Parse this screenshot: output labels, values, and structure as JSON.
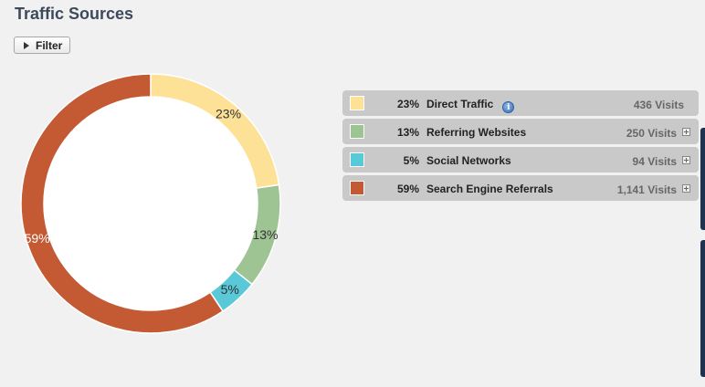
{
  "header": {
    "title": "Traffic Sources"
  },
  "toolbar": {
    "filter_label": "Filter"
  },
  "chart_data": {
    "type": "pie",
    "style": "donut",
    "categories": [
      "Direct Traffic",
      "Referring Websites",
      "Social Networks",
      "Search Engine Referrals"
    ],
    "values": [
      436,
      250,
      94,
      1141
    ],
    "percent_labels": [
      "23%",
      "13%",
      "5%",
      "59%"
    ],
    "colors": [
      "#fde197",
      "#9dc492",
      "#59c9d7",
      "#c35a33"
    ]
  },
  "legend": {
    "rows": [
      {
        "pct": "23%",
        "label": "Direct Traffic",
        "visits": "436 Visits",
        "color": "#fde197",
        "info_icon": "i",
        "expandable": false
      },
      {
        "pct": "13%",
        "label": "Referring Websites",
        "visits": "250 Visits",
        "color": "#9dc492",
        "expandable": true
      },
      {
        "pct": "5%",
        "label": "Social Networks",
        "visits": "94 Visits",
        "color": "#59c9d7",
        "expandable": true
      },
      {
        "pct": "59%",
        "label": "Search Engine Referrals",
        "visits": "1,141 Visits",
        "color": "#c35a33",
        "expandable": true
      }
    ]
  }
}
